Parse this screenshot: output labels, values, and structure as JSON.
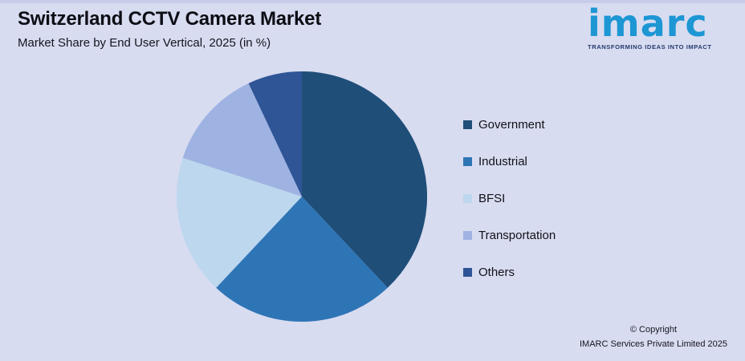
{
  "header": {
    "title": "Switzerland CCTV Camera Market",
    "subtitle": "Market Share by End User Vertical, 2025 (in %)"
  },
  "logo": {
    "name": "imarc",
    "tagline": "TRANSFORMING IDEAS INTO IMPACT",
    "brand_color": "#1d96d4"
  },
  "footer": {
    "copyright_line1": "© Copyright",
    "copyright_line2": "IMARC Services Private Limited 2025"
  },
  "page": {
    "background_color": "#d8dcf0"
  },
  "chart_data": {
    "type": "pie",
    "title": "Switzerland CCTV Camera Market",
    "subtitle": "Market Share by End User Vertical, 2025 (in %)",
    "categories": [
      "Government",
      "Industrial",
      "BFSI",
      "Transportation",
      "Others"
    ],
    "values": [
      38,
      24,
      18,
      13,
      7
    ],
    "colors": [
      "#1f4e79",
      "#2e75b6",
      "#bdd7ee",
      "#9fb3e2",
      "#2f5597"
    ],
    "unit": "%",
    "legend_position": "right",
    "start_angle_deg": -90,
    "direction": "clockwise",
    "grid": false
  }
}
